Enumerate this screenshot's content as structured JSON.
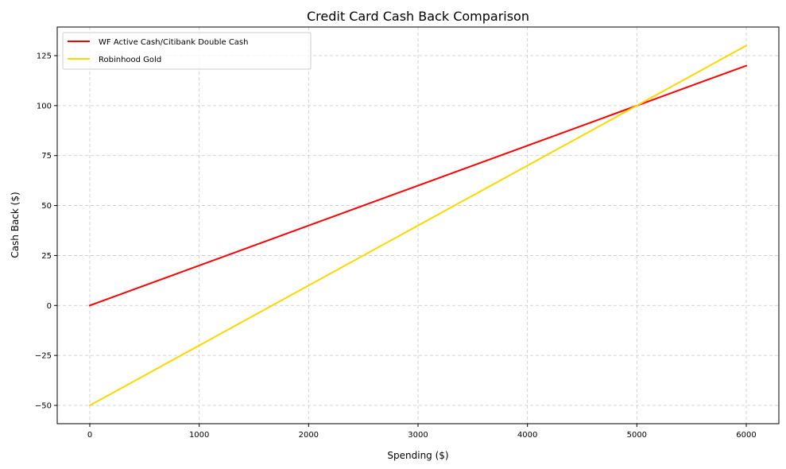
{
  "chart_data": {
    "type": "line",
    "title": "Credit Card Cash Back Comparison",
    "xlabel": "Spending ($)",
    "ylabel": "Cash Back ($)",
    "xlim": [
      -300,
      6300
    ],
    "ylim": [
      -59,
      139
    ],
    "xticks": [
      0,
      1000,
      2000,
      3000,
      4000,
      5000,
      6000
    ],
    "xtick_labels": [
      "0",
      "1000",
      "2000",
      "3000",
      "4000",
      "5000",
      "6000"
    ],
    "yticks": [
      -50,
      -25,
      0,
      25,
      50,
      75,
      100,
      125
    ],
    "ytick_labels": [
      "−50",
      "−25",
      "0",
      "25",
      "50",
      "75",
      "100",
      "125"
    ],
    "grid": true,
    "grid_style": "dashed",
    "legend_position": "upper left",
    "series": [
      {
        "name": "WF Active Cash/Citibank Double Cash",
        "color": "#ff0000",
        "x": [
          0,
          6000
        ],
        "y": [
          0,
          120
        ]
      },
      {
        "name": "Robinhood Gold",
        "color": "#ffd700",
        "x": [
          0,
          6000
        ],
        "y": [
          -50,
          130
        ]
      }
    ]
  },
  "legend": {
    "items": [
      {
        "label": "WF Active Cash/Citibank Double Cash",
        "color": "#ff0000"
      },
      {
        "label": "Robinhood Gold",
        "color": "#ffd700"
      }
    ]
  }
}
